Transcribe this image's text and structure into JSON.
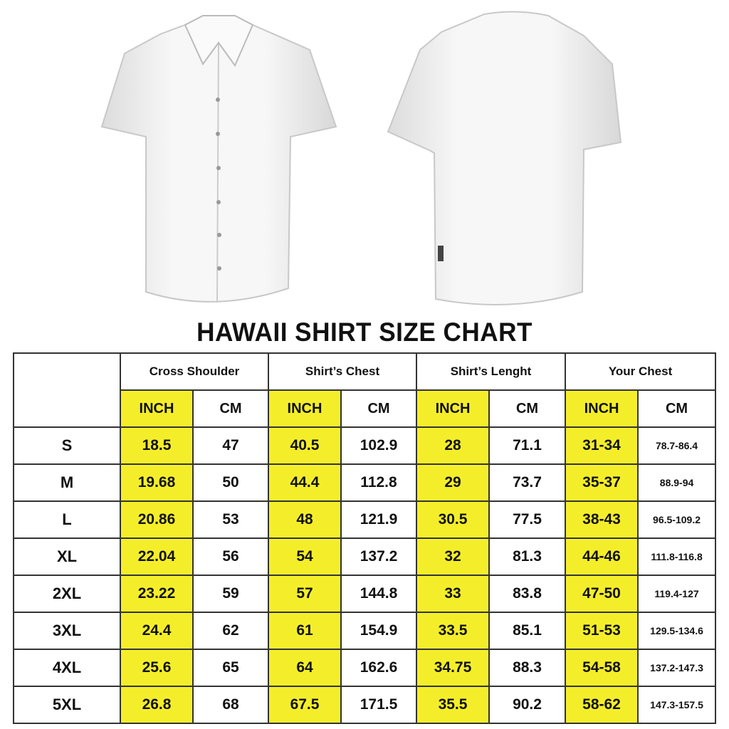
{
  "title": "HAWAII SHIRT SIZE CHART",
  "colors": {
    "highlight": "#f4ee2a",
    "border": "#333333",
    "shirt": "#f2f2f2"
  },
  "images": [
    "white-shirt-front",
    "white-shirt-back"
  ],
  "table": {
    "groups": [
      "Cross Shoulder",
      "Shirt’s Chest",
      "Shirt’s Lenght",
      "Your Chest"
    ],
    "units": [
      "INCH",
      "CM",
      "INCH",
      "CM",
      "INCH",
      "CM",
      "INCH",
      "CM"
    ],
    "rows": [
      {
        "size": "S",
        "values": [
          "18.5",
          "47",
          "40.5",
          "102.9",
          "28",
          "71.1",
          "31-34",
          "78.7-86.4"
        ]
      },
      {
        "size": "M",
        "values": [
          "19.68",
          "50",
          "44.4",
          "112.8",
          "29",
          "73.7",
          "35-37",
          "88.9-94"
        ]
      },
      {
        "size": "L",
        "values": [
          "20.86",
          "53",
          "48",
          "121.9",
          "30.5",
          "77.5",
          "38-43",
          "96.5-109.2"
        ]
      },
      {
        "size": "XL",
        "values": [
          "22.04",
          "56",
          "54",
          "137.2",
          "32",
          "81.3",
          "44-46",
          "111.8-116.8"
        ]
      },
      {
        "size": "2XL",
        "values": [
          "23.22",
          "59",
          "57",
          "144.8",
          "33",
          "83.8",
          "47-50",
          "119.4-127"
        ]
      },
      {
        "size": "3XL",
        "values": [
          "24.4",
          "62",
          "61",
          "154.9",
          "33.5",
          "85.1",
          "51-53",
          "129.5-134.6"
        ]
      },
      {
        "size": "4XL",
        "values": [
          "25.6",
          "65",
          "64",
          "162.6",
          "34.75",
          "88.3",
          "54-58",
          "137.2-147.3"
        ]
      },
      {
        "size": "5XL",
        "values": [
          "26.8",
          "68",
          "67.5",
          "171.5",
          "35.5",
          "90.2",
          "58-62",
          "147.3-157.5"
        ]
      }
    ]
  }
}
